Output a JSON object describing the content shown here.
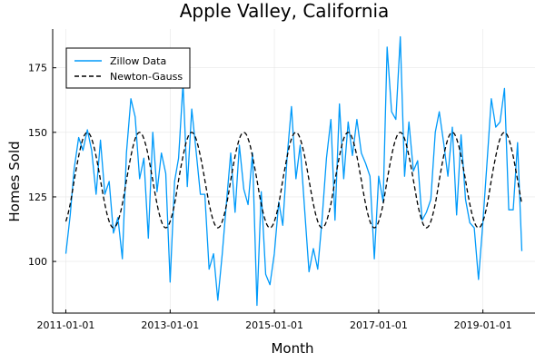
{
  "chart_data": {
    "type": "line",
    "title": "Apple Valley, California",
    "xlabel": "Month",
    "ylabel": "Homes Sold",
    "x_ticks": [
      "2011-01-01",
      "2013-01-01",
      "2015-01-01",
      "2017-01-01",
      "2019-01-01"
    ],
    "y_ticks": [
      100,
      125,
      150,
      175
    ],
    "xlim": [
      "2010-10-01",
      "2020-01-01"
    ],
    "ylim": [
      80,
      190
    ],
    "grid": true,
    "legend": "top-left",
    "series": [
      {
        "name": "Zillow Data",
        "style": "solid",
        "color": "#009AFA",
        "start": "2011-01-01",
        "frequency": "monthly",
        "values": [
          103,
          118,
          136,
          148,
          143,
          151,
          143,
          126,
          147,
          126,
          131,
          111,
          117,
          101,
          142,
          163,
          156,
          132,
          140,
          109,
          150,
          127,
          142,
          134,
          92,
          131,
          140,
          169,
          129,
          159,
          143,
          126,
          126,
          97,
          103,
          85,
          103,
          124,
          142,
          119,
          145,
          128,
          122,
          142,
          83,
          127,
          95,
          91,
          103,
          123,
          114,
          141,
          160,
          132,
          145,
          120,
          96,
          105,
          97,
          116,
          140,
          155,
          116,
          161,
          132,
          154,
          141,
          155,
          142,
          138,
          133,
          101,
          133,
          123,
          183,
          158,
          155,
          187,
          133,
          154,
          135,
          139,
          116,
          119,
          124,
          150,
          158,
          146,
          133,
          152,
          118,
          149,
          124,
          115,
          113,
          93,
          115,
          140,
          163,
          152,
          154,
          167,
          120,
          120,
          146,
          104
        ],
        "points_shown": 106
      },
      {
        "name": "Newton-Gauss",
        "style": "dashed",
        "color": "#000000",
        "model": "sinusoidal fit, period 12 months",
        "mean": 131.5,
        "amplitude": 18.5,
        "peak_month": 5
      }
    ]
  }
}
